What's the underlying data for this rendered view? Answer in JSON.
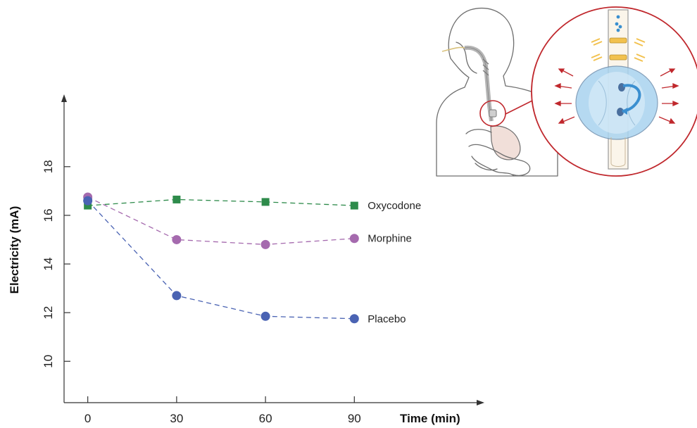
{
  "chart_data": {
    "type": "line",
    "xlabel": "Time (min)",
    "ylabel": "Electricity (mA)",
    "x": [
      0,
      30,
      60,
      90
    ],
    "xlim": [
      -8,
      132
    ],
    "ylim": [
      8.3,
      20.8
    ],
    "yticks": [
      10,
      12,
      14,
      16,
      18
    ],
    "grid": false,
    "series": [
      {
        "name": "Oxycodone",
        "marker": "square",
        "color": "#2e8b4b",
        "values": [
          16.4,
          16.65,
          16.55,
          16.4
        ]
      },
      {
        "name": "Morphine",
        "marker": "circle",
        "color": "#a56aae",
        "values": [
          16.75,
          15.0,
          14.8,
          15.05
        ]
      },
      {
        "name": "Placebo",
        "marker": "circle",
        "color": "#4a63b3",
        "values": [
          16.6,
          12.7,
          11.85,
          11.75
        ]
      }
    ]
  },
  "illustration": {
    "subject": "human-torso-esophagus-sensor",
    "colors": {
      "outline": "#6f6f6f",
      "magnifier": "#c0282d",
      "bulb": "#a9d3ef",
      "arrow": "#3a8fd0",
      "spark": "#f2c14e"
    }
  }
}
